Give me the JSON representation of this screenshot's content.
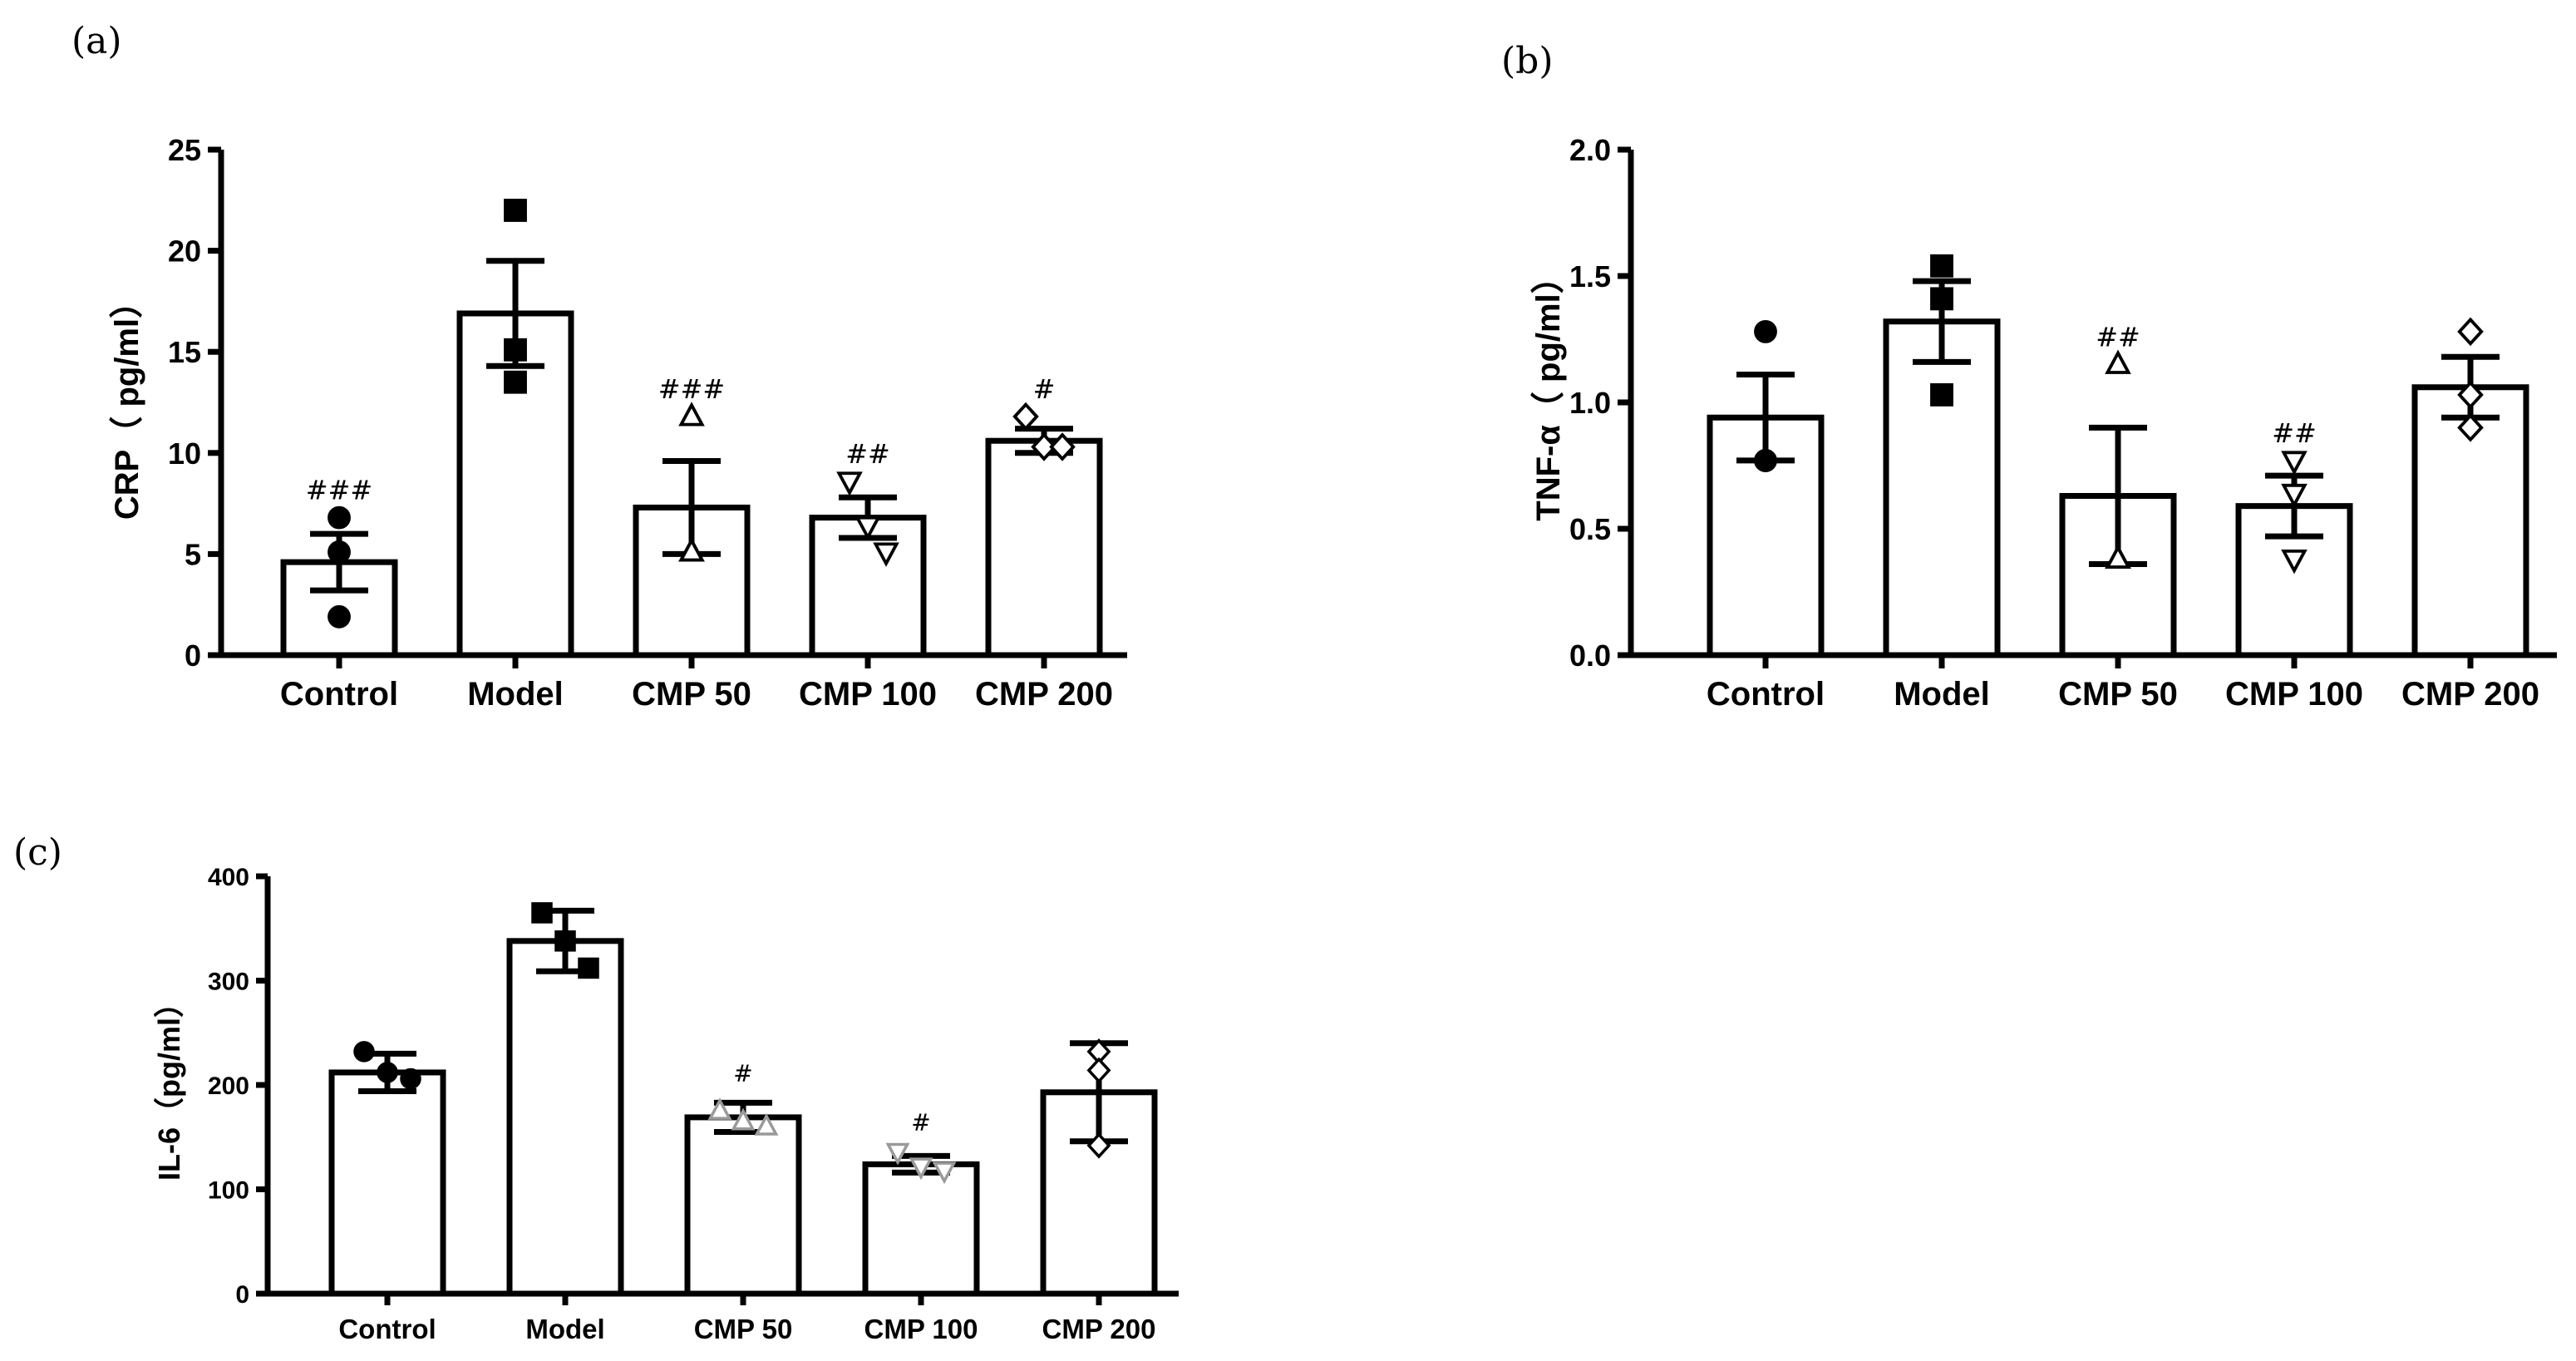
{
  "figure": {
    "panels": [
      "(a)",
      "(b)",
      "(c)"
    ]
  },
  "chart_data": [
    {
      "type": "bar",
      "panel": "(a)",
      "title": "",
      "xlabel": "",
      "ylabel": "CRP（ pg/ml）",
      "ylim": [
        0,
        25
      ],
      "yticks": [
        "0",
        "5",
        "10",
        "15",
        "20",
        "25"
      ],
      "categories": [
        "Control",
        "Model",
        "CMP 50",
        "CMP 100",
        "CMP 200"
      ],
      "values": [
        4.6,
        16.9,
        7.3,
        6.8,
        10.6
      ],
      "error_bar_sem": [
        1.4,
        2.6,
        2.3,
        1.0,
        0.6
      ],
      "significance": [
        "###",
        "",
        "###",
        "##",
        "#"
      ],
      "markers": [
        "circle",
        "square",
        "triangle-up",
        "triangle-down",
        "diamond"
      ],
      "points": [
        [
          6.8,
          5.1,
          1.9
        ],
        [
          22.0,
          15.1,
          13.5
        ],
        [
          11.8,
          5.1,
          5.1
        ],
        [
          8.6,
          6.4,
          5.1
        ],
        [
          11.8,
          10.3,
          10.3
        ]
      ]
    },
    {
      "type": "bar",
      "panel": "(b)",
      "title": "",
      "xlabel": "",
      "ylabel": "TNF-α（ pg/ml）",
      "ylim": [
        0,
        2.0
      ],
      "yticks": [
        "0.0",
        "0.5",
        "1.0",
        "1.5",
        "2.0"
      ],
      "categories": [
        "Control",
        "Model",
        "CMP 50",
        "CMP 100",
        "CMP 200"
      ],
      "values": [
        0.94,
        1.32,
        0.63,
        0.59,
        1.06
      ],
      "error_bar_sem": [
        0.17,
        0.16,
        0.27,
        0.12,
        0.12
      ],
      "significance": [
        "",
        "",
        "##",
        "##",
        ""
      ],
      "markers": [
        "circle",
        "square",
        "triangle-up",
        "triangle-down",
        "diamond"
      ],
      "points": [
        [
          1.28,
          0.77,
          0.77
        ],
        [
          1.54,
          1.41,
          1.03
        ],
        [
          1.15,
          0.38,
          0.38
        ],
        [
          0.77,
          0.64,
          0.38
        ],
        [
          1.28,
          1.03,
          0.9
        ]
      ]
    },
    {
      "type": "bar",
      "panel": "(c)",
      "title": "",
      "xlabel": "",
      "ylabel": "IL-6（pg/ml）",
      "ylim": [
        0,
        400
      ],
      "yticks": [
        "0",
        "100",
        "200",
        "300",
        "400"
      ],
      "categories": [
        "Control",
        "Model",
        "CMP 50",
        "CMP 100",
        "CMP 200"
      ],
      "values": [
        212,
        338,
        169,
        124,
        193
      ],
      "error_bar_sd": [
        18,
        29,
        14,
        8,
        47
      ],
      "significance": [
        "",
        "",
        "#",
        "#",
        ""
      ],
      "markers": [
        "circle",
        "square",
        "triangle-up",
        "triangle-down",
        "diamond"
      ],
      "points": [
        [
          232,
          212,
          206
        ],
        [
          365,
          338,
          312
        ],
        [
          175,
          165,
          160
        ],
        [
          136,
          122,
          118
        ],
        [
          232,
          214,
          142
        ]
      ]
    }
  ]
}
